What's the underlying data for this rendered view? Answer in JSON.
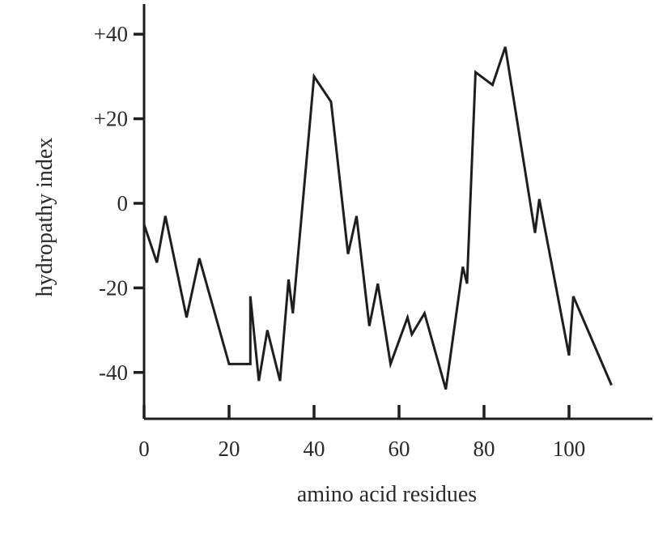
{
  "chart_data": {
    "type": "line",
    "title": "",
    "xlabel": "amino acid residues",
    "ylabel": "hydropathy index",
    "xlim": [
      0,
      119
    ],
    "ylim": [
      -50,
      47
    ],
    "grid": false,
    "legend": "none",
    "x_ticks": [
      {
        "value": 0,
        "label": "0"
      },
      {
        "value": 20,
        "label": "20"
      },
      {
        "value": 40,
        "label": "40"
      },
      {
        "value": 60,
        "label": "60"
      },
      {
        "value": 80,
        "label": "80"
      },
      {
        "value": 100,
        "label": "100"
      }
    ],
    "y_ticks": [
      {
        "value": 40,
        "label": "+40"
      },
      {
        "value": 20,
        "label": "+20"
      },
      {
        "value": 0,
        "label": "0"
      },
      {
        "value": -20,
        "label": "-20"
      },
      {
        "value": -40,
        "label": "-40"
      }
    ],
    "series": [
      {
        "color": "#1e1e1e",
        "x": [
          0,
          3,
          5,
          10,
          13,
          20,
          25,
          25,
          27,
          29,
          32,
          34,
          35,
          40,
          44,
          48,
          50,
          53,
          55,
          58,
          62,
          63,
          66,
          71,
          75,
          76,
          78,
          82,
          85,
          92,
          93,
          100,
          101,
          110
        ],
        "y": [
          -5,
          -14,
          -3,
          -27,
          -13,
          -38,
          -38,
          -22,
          -42,
          -30,
          -42,
          -18,
          -26,
          30,
          24,
          -12,
          -3,
          -29,
          -19,
          -38,
          -27,
          -31,
          -26,
          -44,
          -15,
          -19,
          31,
          28,
          37,
          -7,
          1,
          -36,
          -22,
          -43
        ]
      }
    ]
  }
}
